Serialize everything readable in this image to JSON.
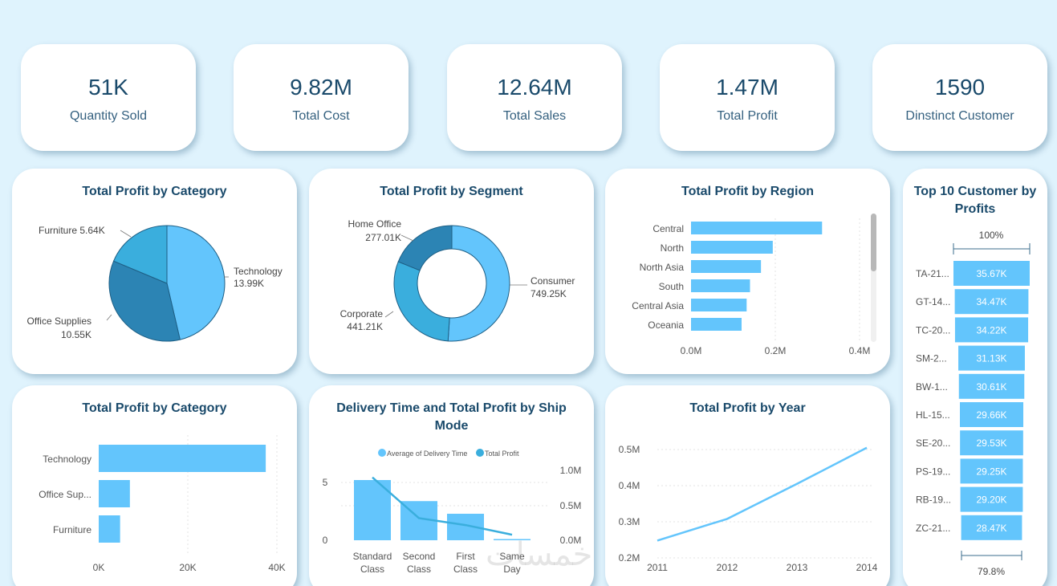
{
  "kpis": [
    {
      "value": "51K",
      "label": "Quantity Sold"
    },
    {
      "value": "9.82M",
      "label": "Total Cost"
    },
    {
      "value": "12.64M",
      "label": "Total Sales"
    },
    {
      "value": "1.47M",
      "label": "Total Profit"
    },
    {
      "value": "1590",
      "label": "Dinstinct Customer"
    }
  ],
  "colors": {
    "light": "#63c5fc",
    "mid": "#3aaedd",
    "dark": "#2c84b4",
    "text": "#1a4a6b"
  },
  "watermark": "خمسات",
  "chart_data": [
    {
      "type": "pie",
      "title": "Total Profit by Category",
      "slices": [
        {
          "label": "Technology",
          "value": 13990,
          "display": "13.99K"
        },
        {
          "label": "Office Supplies",
          "value": 10550,
          "display": "10.55K"
        },
        {
          "label": "Furniture",
          "value": 5640,
          "display": "5.64K"
        }
      ]
    },
    {
      "type": "donut",
      "title": "Total Profit by Segment",
      "slices": [
        {
          "label": "Consumer",
          "value": 749250,
          "display": "749.25K"
        },
        {
          "label": "Corporate",
          "value": 441210,
          "display": "441.21K"
        },
        {
          "label": "Home Office",
          "value": 277010,
          "display": "277.01K"
        }
      ]
    },
    {
      "type": "bar",
      "title": "Total Profit by Region",
      "orientation": "horizontal",
      "categories": [
        "Central",
        "North",
        "North Asia",
        "South",
        "Central Asia",
        "Oceania"
      ],
      "values": [
        311000,
        194000,
        166000,
        140000,
        132000,
        120000
      ],
      "xticks": [
        "0.0M",
        "0.2M",
        "0.4M"
      ],
      "xlim": [
        0,
        400000
      ]
    },
    {
      "type": "bar",
      "title": "Top 10 Customer by Profits",
      "orientation": "horizontal",
      "top_label": "100%",
      "bottom_label": "79.8%",
      "categories": [
        "TA-21...",
        "GT-14...",
        "TC-20...",
        "SM-2...",
        "BW-1...",
        "HL-15...",
        "SE-20...",
        "PS-19...",
        "RB-19...",
        "ZC-21..."
      ],
      "values": [
        35670,
        34470,
        34220,
        31130,
        30610,
        29660,
        29530,
        29250,
        29200,
        28470
      ],
      "labels": [
        "35.67K",
        "34.47K",
        "34.22K",
        "31.13K",
        "30.61K",
        "29.66K",
        "29.53K",
        "29.25K",
        "29.20K",
        "28.47K"
      ]
    },
    {
      "type": "bar",
      "title": "Total Profit by Category",
      "orientation": "horizontal",
      "categories": [
        "Technology",
        "Office Sup...",
        "Furniture"
      ],
      "values": [
        37500,
        7000,
        4800
      ],
      "xticks": [
        "0K",
        "20K",
        "40K"
      ],
      "xlim": [
        0,
        40000
      ]
    },
    {
      "type": "bar+line",
      "title": "Delivery Time and Total Profit by Ship Mode",
      "legend": [
        "Average of Delivery Time",
        "Total Profit"
      ],
      "categories": [
        "Standard Class",
        "Second Class",
        "First Class",
        "Same Day"
      ],
      "delivery_time": [
        5,
        3.25,
        2.2,
        0.05
      ],
      "profit": [
        0.91,
        0.32,
        0.22,
        0.08
      ],
      "y_left_ticks": [
        "5",
        "0"
      ],
      "y_right_ticks": [
        "1.0M",
        "0.5M",
        "0.0M"
      ]
    },
    {
      "type": "line",
      "title": "Total Profit by Year",
      "x": [
        "2011",
        "2012",
        "2013",
        "2014"
      ],
      "values": [
        0.248,
        0.308,
        0.405,
        0.505
      ],
      "yticks": [
        "0.5M",
        "0.4M",
        "0.3M",
        "0.2M"
      ],
      "ylim": [
        0.2,
        0.5
      ]
    }
  ]
}
